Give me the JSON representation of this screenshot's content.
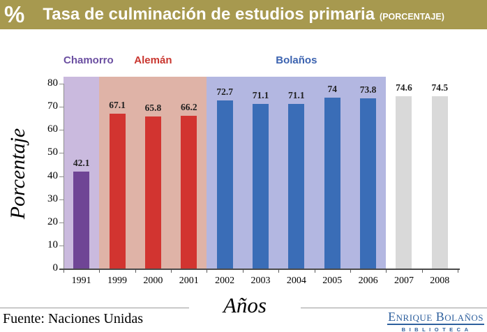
{
  "header": {
    "percent_symbol": "%",
    "title": "Tasa de culminación de estudios primaria",
    "subtitle": "(PORCENTAJE)",
    "bg_color": "#a7994f",
    "text_color": "#ffffff"
  },
  "chart_data": {
    "type": "bar",
    "title": "Tasa de culminación de estudios primaria (PORCENTAJE)",
    "xlabel": "Años",
    "ylabel": "Porcentaje",
    "ylim": [
      0,
      80
    ],
    "yticks": [
      0,
      10,
      20,
      30,
      40,
      50,
      60,
      70,
      80
    ],
    "grid": false,
    "legend_position": "none",
    "categories": [
      "1991",
      "1999",
      "2000",
      "2001",
      "2002",
      "2003",
      "2004",
      "2005",
      "2006",
      "2007",
      "2008"
    ],
    "values": [
      42.1,
      67.1,
      65.8,
      66.2,
      72.7,
      71.1,
      71.1,
      74,
      73.8,
      74.6,
      74.5
    ],
    "value_labels": [
      "42.1",
      "67.1",
      "65.8",
      "66.2",
      "72.7",
      "71.1",
      "71.1",
      "74",
      "73.8",
      "74.6",
      "74.5"
    ],
    "periods": [
      {
        "name": "Chamorro",
        "start_index": 0,
        "count": 1,
        "bar_color": "#6f4595",
        "band_color": "#cabade",
        "label_color": "#6b4fa1"
      },
      {
        "name": "Alemán",
        "start_index": 1,
        "count": 3,
        "bar_color": "#d23430",
        "band_color": "#dfb3a7",
        "label_color": "#c9362f"
      },
      {
        "name": "Bolaños",
        "start_index": 4,
        "count": 5,
        "bar_color": "#3a6db7",
        "band_color": "#b3b7e1",
        "label_color": "#3c63b0"
      },
      {
        "name": "",
        "start_index": 9,
        "count": 2,
        "bar_color": "#d9d9d9",
        "band_color": "",
        "label_color": ""
      }
    ]
  },
  "footer": {
    "source": "Fuente: Naciones Unidas",
    "logo_line1": "Enrique Bolaños",
    "logo_line2": "BIBLIOTECA",
    "logo_color": "#2d5f9d"
  }
}
